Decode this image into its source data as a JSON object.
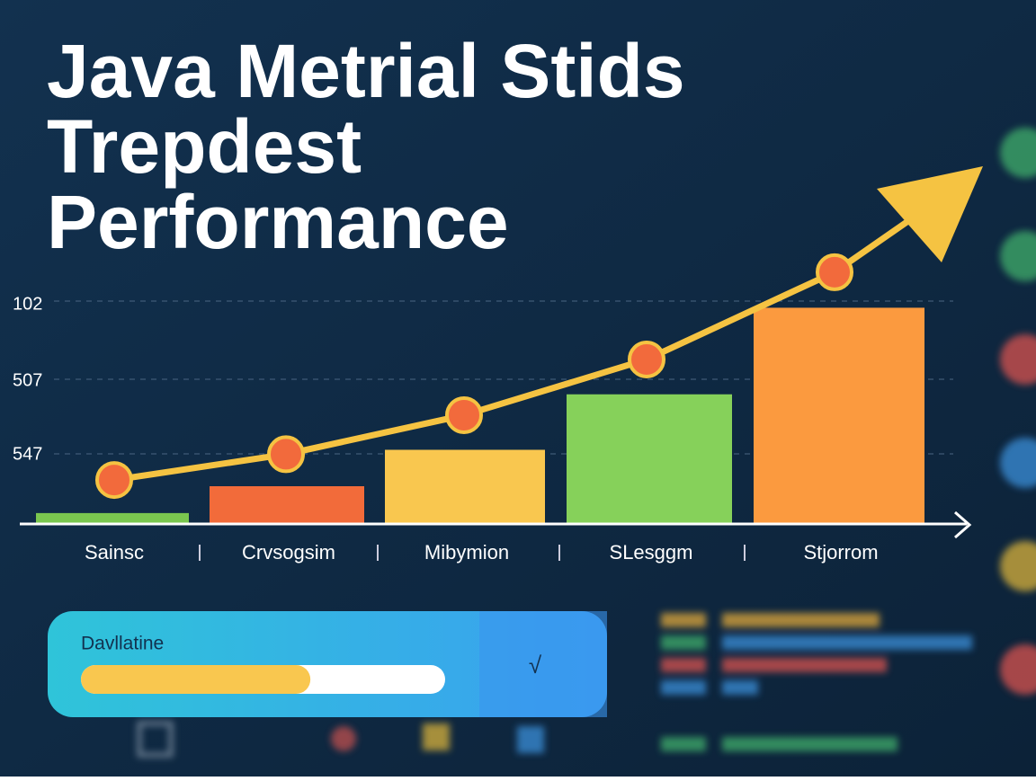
{
  "chart_data": {
    "type": "bar",
    "title_lines": [
      "Java Metrial Stids",
      "Trepdest",
      "Performance"
    ],
    "categories": [
      "Sainsc",
      "Crvsogsim",
      "Mibymion",
      "SLesggm",
      "Stjorrom"
    ],
    "series": [
      {
        "colors": [
          "#7ac74f",
          "#f26b3a",
          "#f9c74f",
          "#86d15a",
          "#fb9a3f"
        ],
        "values": [
          4.5,
          16.6,
          33,
          58,
          97
        ]
      },
      {
        "type": "line",
        "color": "#f5c342",
        "values": [
          19.4,
          31,
          48.6,
          73.7,
          113
        ]
      }
    ],
    "grid_labels": [
      "102",
      "507",
      "547"
    ],
    "ylim": [
      0,
      100
    ]
  },
  "progress": {
    "label": "Davllatine",
    "value": 63,
    "range": [
      0,
      100
    ],
    "button": "√"
  }
}
